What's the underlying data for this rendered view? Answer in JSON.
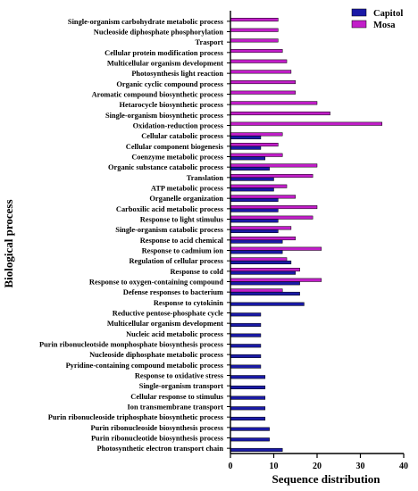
{
  "chart_data": {
    "type": "bar",
    "orientation": "horizontal",
    "xlabel": "Sequence distribution",
    "ylabel": "Biological process",
    "xlim": [
      0,
      40
    ],
    "xticks": [
      0,
      10,
      20,
      30,
      40
    ],
    "grid": false,
    "legend_position": "top-right",
    "categories": [
      "Single-organism carbohydrate metabolic process",
      "Nucleoside diphosphate phosphorylation",
      "Trasport",
      "Cellular protein modification process",
      "Multicellular organism development",
      "Photosynthesis light reaction",
      "Organic cyclic compound process",
      "Aromatic compound biosynthetic process",
      "Hetarocycle biosynthetic process",
      "Single-organism biosynthetic process",
      "Oxidation-reduction process",
      "Cellular catabolic process",
      "Cellular component biogenesis",
      "Coenzyme metabolic process",
      "Organic substance catabolic process",
      "Translation",
      "ATP metabolic process",
      "Organelle organization",
      "Carboxilic acid metabolic process",
      "Response to light stimulus",
      "Single-organism catabolic process",
      "Response to acid chemical",
      "Response to cadmium ion",
      "Regulation of cellular process",
      "Response to cold",
      "Response to oxygen-containing compound",
      "Defense responses to bacterium",
      "Response to cytokinin",
      "Reductive pentose-phosphate cycle",
      "Multicellular organism development",
      "Nucleic acid metabolic process",
      "Purin ribonucleotside monphosphate biosynthesis process",
      "Nucleoside diphosphate metabolic process",
      "Pyridine-containing compound metabolic process",
      "Response to oxidative stress",
      "Single-organism transport",
      "Cellular response to stimulus",
      "Ion transmembrane transport",
      "Purin ribonucleoside triphosphate biosynthetic process",
      "Purin ribonucleoside biosynthesis process",
      "Purin ribonucleotide biosynthesis process",
      "Photosynthetic electron transport chain"
    ],
    "series": [
      {
        "name": "Capitol",
        "color": "#1a1aa6",
        "values": [
          0,
          0,
          0,
          0,
          0,
          0,
          0,
          0,
          0,
          0,
          0,
          7,
          7,
          8,
          9,
          10,
          10,
          11,
          11,
          11,
          11,
          12,
          12,
          14,
          15,
          16,
          16,
          17,
          7,
          7,
          7,
          7,
          7,
          7,
          8,
          8,
          8,
          8,
          8,
          9,
          9,
          12
        ]
      },
      {
        "name": "Mosa",
        "color": "#c21ec9",
        "values": [
          11,
          11,
          11,
          12,
          13,
          14,
          15,
          15,
          20,
          23,
          35,
          12,
          11,
          12,
          20,
          19,
          13,
          15,
          20,
          19,
          14,
          15,
          21,
          13,
          16,
          21,
          12,
          0,
          0,
          0,
          0,
          0,
          0,
          0,
          0,
          0,
          0,
          0,
          0,
          0,
          0,
          0
        ]
      }
    ]
  }
}
